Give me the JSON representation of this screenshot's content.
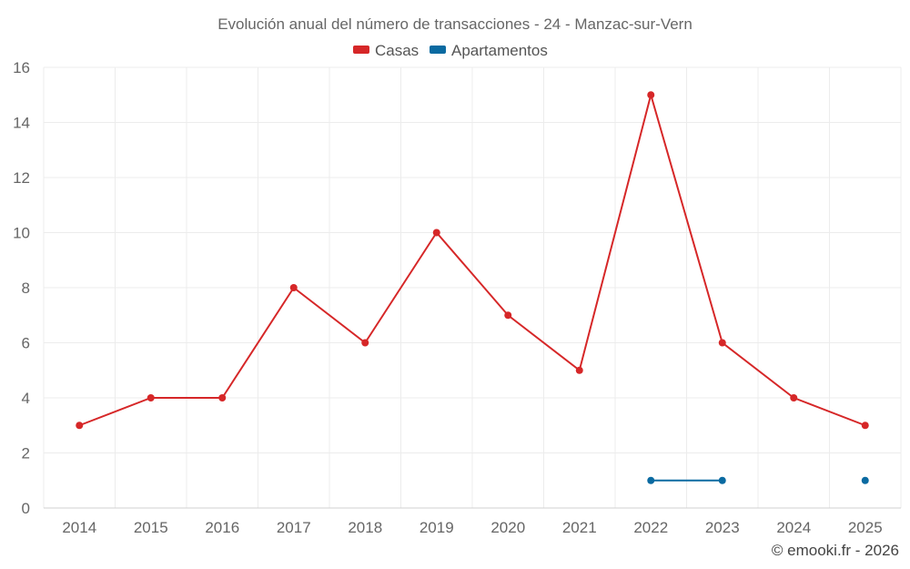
{
  "chart_data": {
    "type": "line",
    "title": "Evolución anual del número de transacciones - 24 - Manzac-sur-Vern",
    "categories": [
      "2014",
      "2015",
      "2016",
      "2017",
      "2018",
      "2019",
      "2020",
      "2021",
      "2022",
      "2023",
      "2024",
      "2025"
    ],
    "ylim": [
      0,
      16
    ],
    "yticks": [
      0,
      2,
      4,
      6,
      8,
      10,
      12,
      14,
      16
    ],
    "grid": true,
    "legend_position": "top-center",
    "series": [
      {
        "name": "Casas",
        "color": "#d62728",
        "values": [
          3,
          4,
          4,
          8,
          6,
          10,
          7,
          5,
          15,
          6,
          4,
          3
        ]
      },
      {
        "name": "Apartamentos",
        "color": "#0a6aa1",
        "values": [
          null,
          null,
          null,
          null,
          null,
          null,
          null,
          null,
          1,
          1,
          null,
          1
        ]
      }
    ]
  },
  "credit": "© emooki.fr - 2026"
}
